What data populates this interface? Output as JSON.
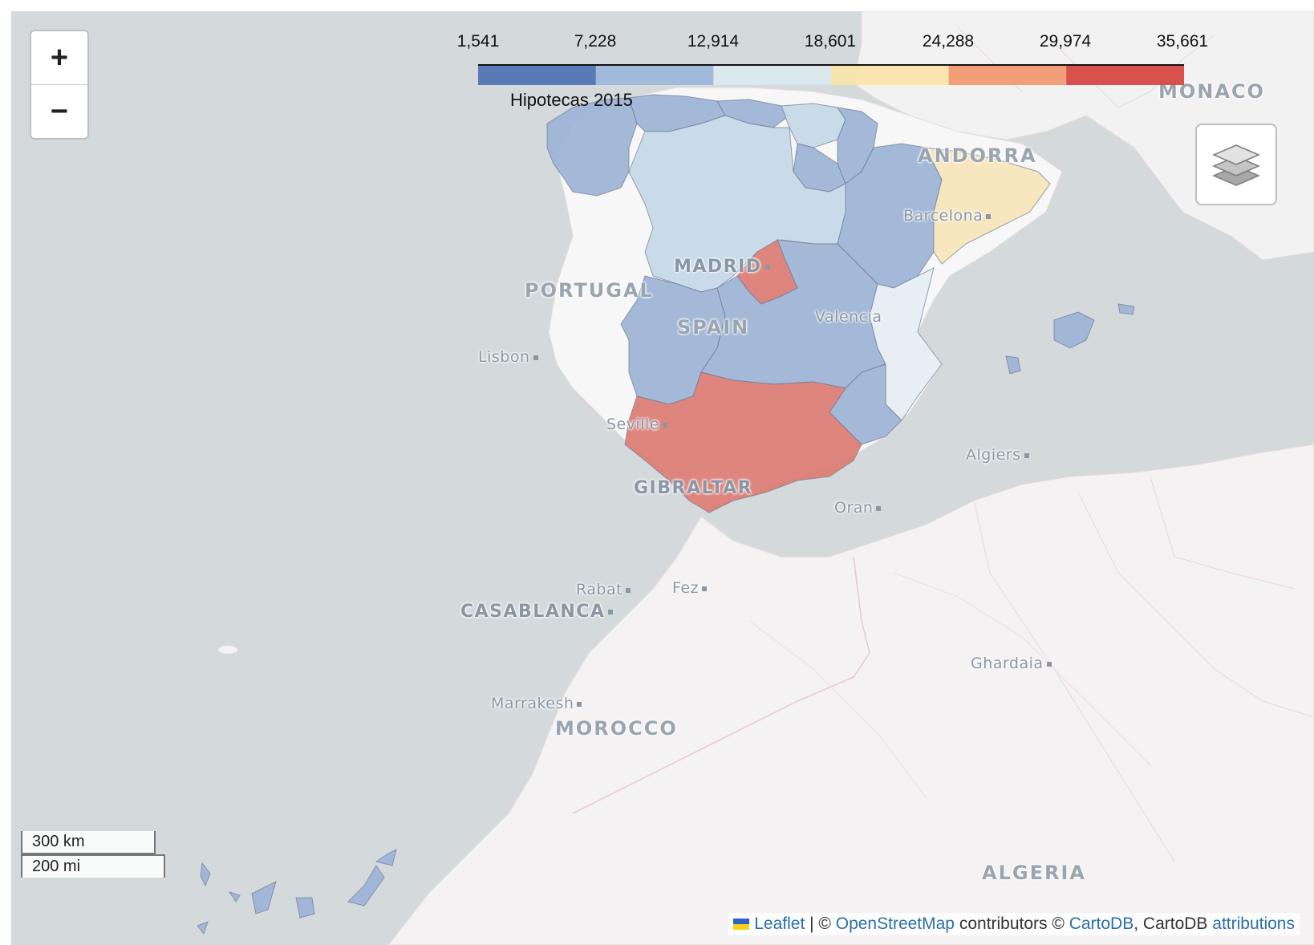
{
  "map": {
    "zoom_in_label": "+",
    "zoom_out_label": "−",
    "layers_icon": "layers-icon",
    "legend": {
      "title": "Hipotecas 2015",
      "ticks": [
        "1,541",
        "7,228",
        "12,914",
        "18,601",
        "24,288",
        "29,974",
        "35,661"
      ],
      "colors": [
        "#4a6fb3",
        "#9bb6d8",
        "#dce9f0",
        "#fbe3a6",
        "#f1956b",
        "#d4403a"
      ]
    },
    "labels": {
      "portugal": "PORTUGAL",
      "spain": "SPAIN",
      "morocco": "MOROCCO",
      "andorra": "ANDORRA",
      "monaco": "MONACO",
      "gibraltar": "GIBRALTAR",
      "algeria": "ALGERIA",
      "madrid": "MADRID",
      "casablanca": "CASABLANCA",
      "lisbon": "Lisbon",
      "seville": "Seville",
      "valencia": "Valencia",
      "barcelona": "Barcelona",
      "algiers": "Algiers",
      "oran": "Oran",
      "rabat": "Rabat",
      "fez": "Fez",
      "marrakesh": "Marrakesh",
      "ghardaia": "Ghardaia"
    },
    "regions": [
      {
        "name": "Galicia",
        "color": "#9fb4d6"
      },
      {
        "name": "Asturias",
        "color": "#9fb4d6"
      },
      {
        "name": "Cantabria",
        "color": "#9fb4d6"
      },
      {
        "name": "País Vasco",
        "color": "#c6d8e8"
      },
      {
        "name": "Navarra",
        "color": "#9fb4d6"
      },
      {
        "name": "La Rioja",
        "color": "#9fb4d6"
      },
      {
        "name": "Aragón",
        "color": "#9fb4d6"
      },
      {
        "name": "Cataluña",
        "color": "#f7e6bb"
      },
      {
        "name": "Castilla y León",
        "color": "#c6d8e8"
      },
      {
        "name": "Madrid",
        "color": "#dc7f76"
      },
      {
        "name": "Extremadura",
        "color": "#9fb4d6"
      },
      {
        "name": "Castilla-La Mancha",
        "color": "#9fb4d6"
      },
      {
        "name": "Comunidad Valenciana",
        "color": "#e7eef3"
      },
      {
        "name": "Murcia",
        "color": "#9fb4d6"
      },
      {
        "name": "Andalucía",
        "color": "#dc7f76"
      },
      {
        "name": "Islas Baleares",
        "color": "#9fb4d6"
      },
      {
        "name": "Canarias",
        "color": "#9fb4d6"
      }
    ],
    "scale": {
      "km": "300 km",
      "mi": "200 mi"
    },
    "attribution": {
      "leaflet": "Leaflet",
      "sep": " | © ",
      "osm": "OpenStreetMap",
      "contributors": " contributors © ",
      "cartodb_link": "CartoDB",
      "cartodb_text": ", CartoDB ",
      "attributions": "attributions"
    }
  }
}
